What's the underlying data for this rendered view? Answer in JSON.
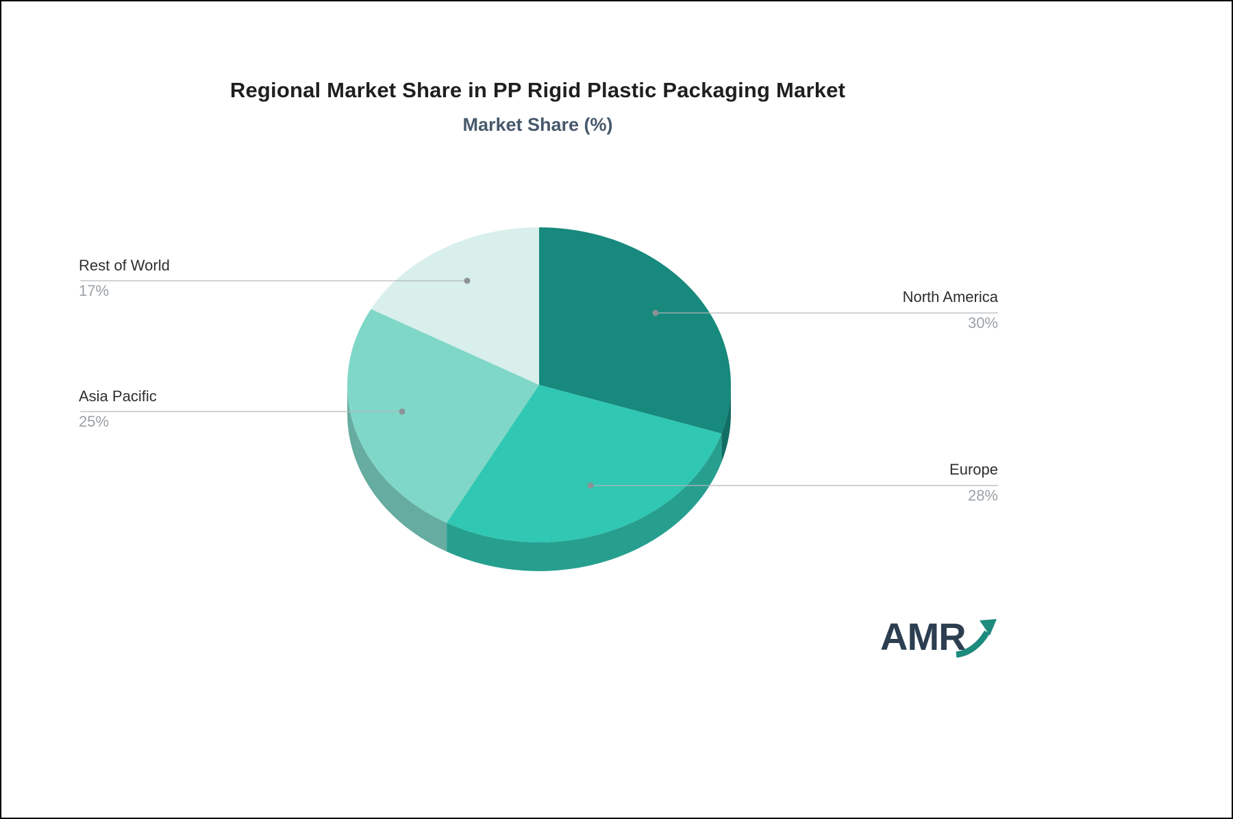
{
  "title": "Regional Market Share in PP Rigid Plastic Packaging Market",
  "subtitle": "Market Share (%)",
  "logo": {
    "text": "AMR"
  },
  "chart_data": {
    "type": "pie",
    "title": "Regional Market Share in PP Rigid Plastic Packaging Market",
    "subtitle": "Market Share (%)",
    "unit": "%",
    "total": 100,
    "start_angle_deg": -90,
    "direction": "clockwise",
    "style": "3d-pie",
    "legend_position": "none",
    "labels": "outside-callouts",
    "slices": [
      {
        "label": "North America",
        "value": 30,
        "display_value": "30%",
        "color": "#17897d"
      },
      {
        "label": "Europe",
        "value": 28,
        "display_value": "28%",
        "color": "#30c7b3"
      },
      {
        "label": "Asia Pacific",
        "value": 25,
        "display_value": "25%",
        "color": "#7fd7c8"
      },
      {
        "label": "Rest of World",
        "value": 17,
        "display_value": "17%",
        "color": "#d8efeb"
      }
    ]
  }
}
